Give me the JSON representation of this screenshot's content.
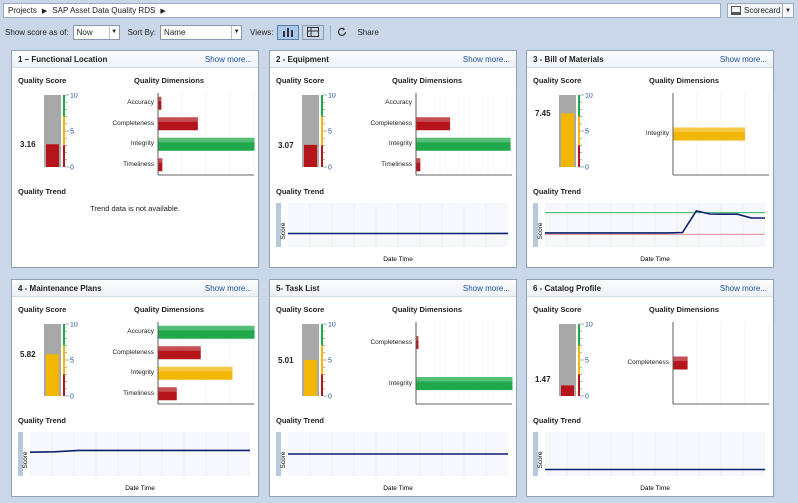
{
  "breadcrumb": {
    "items": [
      "Projects",
      "SAP Asset Data Quality RDS"
    ]
  },
  "view_selector": {
    "label": "Scorecard"
  },
  "toolbar": {
    "show_score_label": "Show score as of:",
    "show_score_value": "Now",
    "sort_by_label": "Sort By:",
    "sort_by_value": "Name",
    "views_label": "Views:",
    "share_label": "Share"
  },
  "labels": {
    "show_more": "Show more...",
    "quality_score": "Quality Score",
    "quality_dimensions": "Quality Dimensions",
    "quality_trend": "Quality Trend",
    "score_axis": "Score",
    "date_axis": "Date Time",
    "trend_na": "Trend data is not available.",
    "gauge_ticks": [
      "10",
      "5",
      "0"
    ]
  },
  "colors": {
    "green": "#1fa94a",
    "red": "#b5151a",
    "yellow": "#f2b705",
    "line": "#0b1f6e"
  },
  "cards": [
    {
      "title": "1 – Functional Location",
      "score": "3.16",
      "score_value": 3.16,
      "score_status": "red",
      "dimensions": [
        {
          "name": "Accuracy",
          "value": 0.3,
          "status": "red"
        },
        {
          "name": "Completeness",
          "value": 4.1,
          "status": "red"
        },
        {
          "name": "Integrity",
          "value": 10,
          "status": "green"
        },
        {
          "name": "Timeliness",
          "value": 0.4,
          "status": "red"
        }
      ],
      "trend_available": false
    },
    {
      "title": "2 - Equipment",
      "score": "3.07",
      "score_value": 3.07,
      "score_status": "red",
      "dimensions": [
        {
          "name": "Accuracy",
          "value": 0,
          "status": "red"
        },
        {
          "name": "Completeness",
          "value": 3.5,
          "status": "red"
        },
        {
          "name": "Integrity",
          "value": 9.8,
          "status": "green"
        },
        {
          "name": "Timeliness",
          "value": 0.4,
          "status": "red"
        }
      ],
      "trend_available": true,
      "trend": [
        3.07,
        3.07,
        3.07,
        3.07,
        3.07,
        3.07,
        3.07,
        3.1
      ]
    },
    {
      "title": "3 - Bill of Materials",
      "score": "7.45",
      "score_value": 7.45,
      "score_status": "yellow",
      "dimensions": [
        {
          "name": "Integrity",
          "value": 7.45,
          "status": "yellow"
        }
      ],
      "trend_available": true,
      "trend": [
        3.2,
        3.2,
        3.2,
        3.2,
        3.2,
        3.2,
        3.2,
        3.2,
        3.2,
        3.2,
        3.3,
        8.2,
        7.5,
        7.45,
        7.45,
        6.6,
        6.6
      ],
      "trend_thresholds": [
        {
          "value": 7.8,
          "color": "#1fa94a"
        },
        {
          "value": 2.9,
          "color": "#e36a6a"
        }
      ]
    },
    {
      "title": "4 - Maintenance Plans",
      "score": "5.82",
      "score_value": 5.82,
      "score_status": "yellow",
      "dimensions": [
        {
          "name": "Accuracy",
          "value": 10,
          "status": "green"
        },
        {
          "name": "Completeness",
          "value": 4.4,
          "status": "red"
        },
        {
          "name": "Integrity",
          "value": 7.7,
          "status": "yellow"
        },
        {
          "name": "Timeliness",
          "value": 1.9,
          "status": "red"
        }
      ],
      "trend_available": true,
      "trend": [
        5.4,
        5.5,
        5.82,
        5.82,
        5.82,
        5.82,
        5.82,
        5.82,
        5.82,
        5.82
      ]
    },
    {
      "title": "5- Task List",
      "score": "5.01",
      "score_value": 5.01,
      "score_status": "yellow",
      "dimensions": [
        {
          "name": "Completeness",
          "value": 0.2,
          "status": "red"
        },
        {
          "name": "Integrity",
          "value": 10,
          "status": "green"
        }
      ],
      "trend_available": true,
      "trend": [
        5.01,
        5.01,
        5.01,
        5.01,
        5.01
      ]
    },
    {
      "title": "6 - Catalog Profile",
      "score": "1.47",
      "score_value": 1.47,
      "score_status": "red",
      "dimensions": [
        {
          "name": "Completeness",
          "value": 1.47,
          "status": "red"
        }
      ],
      "trend_available": true,
      "trend": [
        1.47,
        1.47,
        1.47,
        1.47,
        1.47
      ]
    }
  ]
}
